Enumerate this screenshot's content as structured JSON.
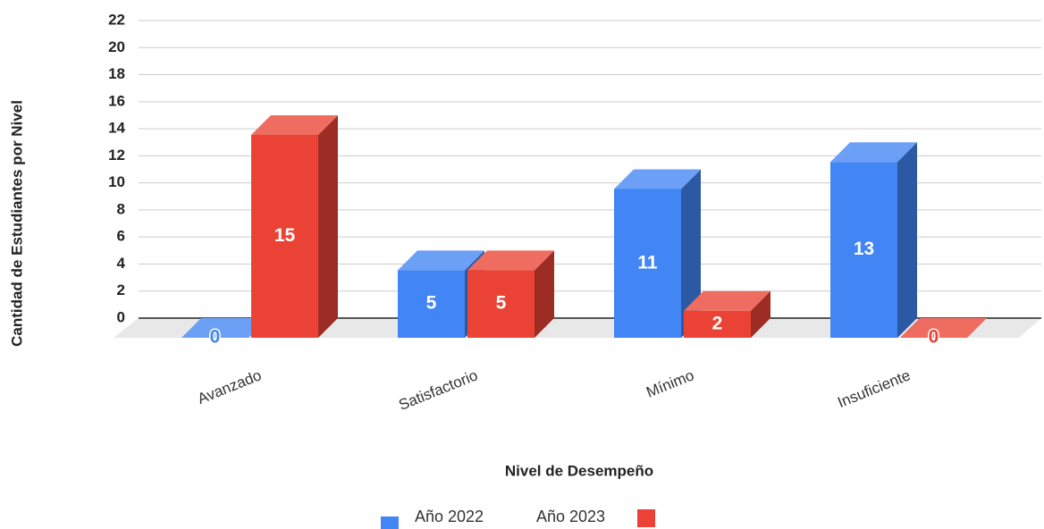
{
  "chart_data": {
    "type": "bar3d",
    "x_label": "Nivel de Desempeño",
    "y_label": "Cantidad de Estudiantes por Nivel",
    "categories": [
      "Avanzado",
      "Satisfactorio",
      "Mínimo",
      "Insuficiente"
    ],
    "series": [
      {
        "name": "Año 2022",
        "color": "#4285f4",
        "values": [
          0,
          5,
          11,
          13
        ]
      },
      {
        "name": "Año 2023",
        "color": "#ea4335",
        "values": [
          15,
          5,
          2,
          0
        ]
      }
    ],
    "ylim": [
      0,
      22
    ],
    "yticks": [
      0,
      2,
      4,
      6,
      8,
      10,
      12,
      14,
      16,
      18,
      20,
      22
    ],
    "grid": true
  }
}
